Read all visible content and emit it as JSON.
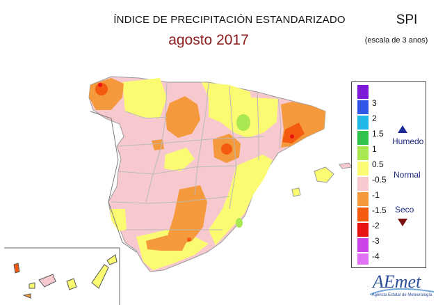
{
  "header": {
    "title": "ÍNDICE DE PRECIPITACIÓN ESTANDARIZADO",
    "date": "agosto 2017",
    "index": "SPI",
    "scale": "(escala de 3 anos)"
  },
  "legend": {
    "classes": [
      {
        "label": "3",
        "color": "#7b1ad8"
      },
      {
        "label": "2",
        "color": "#3355e8"
      },
      {
        "label": "1.5",
        "color": "#22b8e6"
      },
      {
        "label": "1",
        "color": "#2fc24c"
      },
      {
        "label": "0.5",
        "color": "#a9e852"
      },
      {
        "label": "-0.5",
        "color": "#fbfb72"
      },
      {
        "label": "-1",
        "color": "#f7c9cf"
      },
      {
        "label": "-1.5",
        "color": "#f49a3c"
      },
      {
        "label": "-2",
        "color": "#f45a10"
      },
      {
        "label": "-3",
        "color": "#e81212"
      },
      {
        "label": "-4",
        "color": "#cc44e8"
      },
      {
        "label": "",
        "color": "#e070f4"
      }
    ],
    "wet_label": "Humedo",
    "normal_label": "Normal",
    "dry_label": "Seco"
  },
  "map_colors": {
    "normal": "#f7c9cf",
    "moderately_wet": "#fbfb72",
    "dry": "#f49a3c",
    "very_dry": "#f45a10",
    "extreme": "#e81212",
    "humid": "#a9e852",
    "borders": "#b8b8b8"
  },
  "logo": {
    "name": "AEmet",
    "subtitle": "Agencia Estatal de Meteorología"
  }
}
